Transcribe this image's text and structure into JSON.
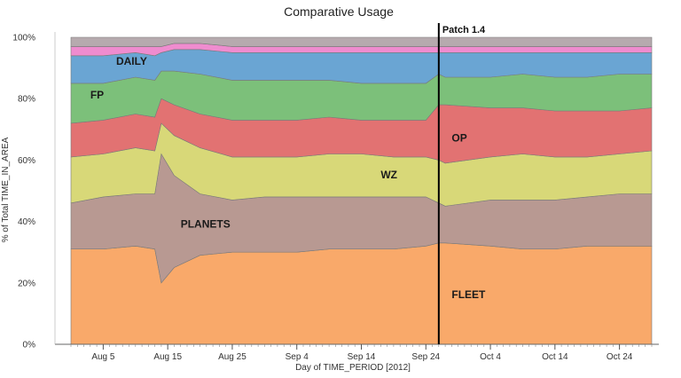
{
  "chart_data": {
    "type": "area",
    "stacked": true,
    "normalized_percent": true,
    "title": "Comparative Usage",
    "xlabel": "Day of TIME_PERIOD [2012]",
    "ylabel": "% of Total TIME_IN_AREA",
    "ylim": [
      0,
      100
    ],
    "yticks": [
      "0%",
      "20%",
      "40%",
      "60%",
      "80%",
      "100%"
    ],
    "x_start": "2012-07-31",
    "x_end": "2012-10-29",
    "xticks": [
      {
        "date": "2012-08-05",
        "label": "Aug 5"
      },
      {
        "date": "2012-08-15",
        "label": "Aug 15"
      },
      {
        "date": "2012-08-25",
        "label": "Aug 25"
      },
      {
        "date": "2012-09-04",
        "label": "Sep 4"
      },
      {
        "date": "2012-09-14",
        "label": "Sep 14"
      },
      {
        "date": "2012-09-24",
        "label": "Sep 24"
      },
      {
        "date": "2012-10-04",
        "label": "Oct 4"
      },
      {
        "date": "2012-10-14",
        "label": "Oct 14"
      },
      {
        "date": "2012-10-24",
        "label": "Oct 24"
      }
    ],
    "x_dates": [
      "2012-07-31",
      "2012-08-05",
      "2012-08-10",
      "2012-08-13",
      "2012-08-14",
      "2012-08-16",
      "2012-08-20",
      "2012-08-25",
      "2012-08-30",
      "2012-09-04",
      "2012-09-09",
      "2012-09-14",
      "2012-09-19",
      "2012-09-24",
      "2012-09-26",
      "2012-09-27",
      "2012-10-04",
      "2012-10-09",
      "2012-10-14",
      "2012-10-19",
      "2012-10-24",
      "2012-10-29"
    ],
    "series": [
      {
        "name": "FLEET",
        "color": "#f9a96a",
        "values": [
          31,
          31,
          32,
          31,
          20,
          25,
          29,
          30,
          30,
          30,
          31,
          31,
          31,
          32,
          33,
          33,
          32,
          31,
          31,
          32,
          32,
          32
        ]
      },
      {
        "name": "PLANETS",
        "color": "#b89992",
        "values": [
          15,
          17,
          17,
          18,
          42,
          30,
          20,
          17,
          18,
          18,
          17,
          17,
          17,
          16,
          13,
          12,
          15,
          16,
          16,
          16,
          17,
          17
        ]
      },
      {
        "name": "WZ",
        "color": "#d8d878",
        "values": [
          15,
          14,
          15,
          14,
          10,
          13,
          15,
          14,
          13,
          13,
          14,
          14,
          13,
          13,
          14,
          14,
          14,
          15,
          14,
          13,
          13,
          14
        ]
      },
      {
        "name": "OP",
        "color": "#e27272",
        "values": [
          11,
          11,
          11,
          11,
          8,
          10,
          11,
          12,
          12,
          12,
          12,
          11,
          12,
          12,
          18,
          19,
          16,
          15,
          15,
          15,
          14,
          14
        ]
      },
      {
        "name": "FP",
        "color": "#7cc07a",
        "values": [
          13,
          12,
          12,
          12,
          9,
          11,
          13,
          13,
          13,
          13,
          12,
          12,
          12,
          12,
          10,
          9,
          10,
          11,
          11,
          11,
          12,
          11
        ]
      },
      {
        "name": "DAILY",
        "color": "#6aa5d3",
        "values": [
          9,
          9,
          8,
          8,
          6,
          7,
          8,
          9,
          9,
          9,
          9,
          10,
          10,
          10,
          7,
          8,
          8,
          7,
          8,
          8,
          7,
          7
        ]
      },
      {
        "name": "",
        "color": "#ef8ccf",
        "values": [
          3,
          3,
          2,
          3,
          2,
          2,
          2,
          2,
          2,
          2,
          2,
          2,
          2,
          2,
          2,
          2,
          2,
          2,
          2,
          2,
          2,
          2
        ]
      },
      {
        "name": "",
        "color": "#b6aaae",
        "values": [
          3,
          3,
          3,
          3,
          3,
          2,
          2,
          3,
          3,
          3,
          3,
          3,
          3,
          3,
          3,
          3,
          3,
          3,
          3,
          3,
          3,
          3
        ]
      }
    ],
    "annotations": [
      {
        "label": "Patch 1.4",
        "date": "2012-09-26",
        "kind": "vertical-line"
      }
    ],
    "band_labels": [
      {
        "name": "DAILY",
        "date": "2012-08-07",
        "y": 91
      },
      {
        "name": "FP",
        "date": "2012-08-03",
        "y": 80
      },
      {
        "name": "OP",
        "date": "2012-09-28",
        "y": 66
      },
      {
        "name": "WZ",
        "date": "2012-09-17",
        "y": 54
      },
      {
        "name": "PLANETS",
        "date": "2012-08-17",
        "y": 38
      },
      {
        "name": "FLEET",
        "date": "2012-09-28",
        "y": 15
      }
    ],
    "grid": false,
    "legend": "none"
  }
}
